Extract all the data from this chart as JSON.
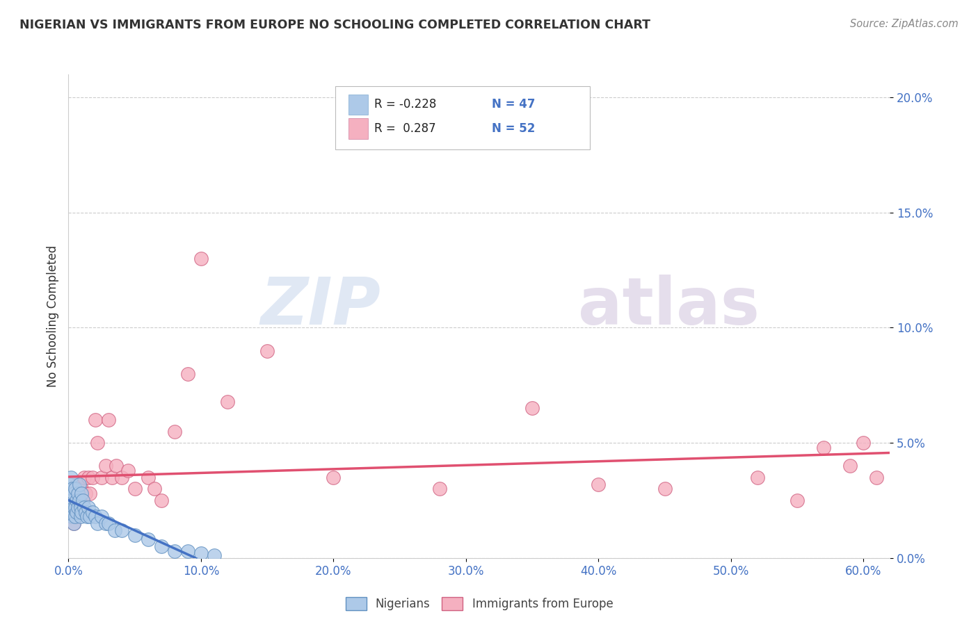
{
  "title": "NIGERIAN VS IMMIGRANTS FROM EUROPE NO SCHOOLING COMPLETED CORRELATION CHART",
  "source": "Source: ZipAtlas.com",
  "ylabel": "No Schooling Completed",
  "xlim": [
    0.0,
    0.62
  ],
  "ylim": [
    0.0,
    0.21
  ],
  "xlabel_vals": [
    0.0,
    0.1,
    0.2,
    0.3,
    0.4,
    0.5,
    0.6
  ],
  "ylabel_vals": [
    0.0,
    0.05,
    0.1,
    0.15,
    0.2
  ],
  "nigerian_R": -0.228,
  "nigerian_N": 47,
  "europe_R": 0.287,
  "europe_N": 52,
  "nigerian_color": "#adc9e8",
  "europe_color": "#f5b0c0",
  "nigerian_line_color": "#4472c4",
  "europe_line_color": "#e05070",
  "nigerian_x": [
    0.0,
    0.001,
    0.001,
    0.001,
    0.002,
    0.002,
    0.002,
    0.003,
    0.003,
    0.003,
    0.004,
    0.004,
    0.004,
    0.005,
    0.005,
    0.005,
    0.006,
    0.006,
    0.007,
    0.007,
    0.008,
    0.008,
    0.009,
    0.009,
    0.01,
    0.01,
    0.011,
    0.012,
    0.013,
    0.014,
    0.015,
    0.016,
    0.018,
    0.02,
    0.022,
    0.025,
    0.028,
    0.03,
    0.035,
    0.04,
    0.05,
    0.06,
    0.07,
    0.08,
    0.09,
    0.1,
    0.11
  ],
  "nigerian_y": [
    0.03,
    0.032,
    0.028,
    0.022,
    0.035,
    0.025,
    0.02,
    0.03,
    0.025,
    0.018,
    0.028,
    0.022,
    0.015,
    0.03,
    0.022,
    0.018,
    0.025,
    0.02,
    0.028,
    0.022,
    0.032,
    0.025,
    0.022,
    0.018,
    0.028,
    0.02,
    0.025,
    0.022,
    0.02,
    0.018,
    0.022,
    0.018,
    0.02,
    0.018,
    0.015,
    0.018,
    0.015,
    0.015,
    0.012,
    0.012,
    0.01,
    0.008,
    0.005,
    0.003,
    0.003,
    0.002,
    0.001
  ],
  "europe_x": [
    0.0,
    0.001,
    0.001,
    0.002,
    0.002,
    0.003,
    0.003,
    0.004,
    0.004,
    0.005,
    0.005,
    0.006,
    0.006,
    0.007,
    0.008,
    0.009,
    0.01,
    0.011,
    0.012,
    0.013,
    0.015,
    0.016,
    0.018,
    0.02,
    0.022,
    0.025,
    0.028,
    0.03,
    0.033,
    0.036,
    0.04,
    0.045,
    0.05,
    0.06,
    0.065,
    0.07,
    0.08,
    0.09,
    0.1,
    0.12,
    0.15,
    0.2,
    0.28,
    0.35,
    0.4,
    0.45,
    0.52,
    0.55,
    0.57,
    0.59,
    0.6,
    0.61
  ],
  "europe_y": [
    0.02,
    0.025,
    0.018,
    0.028,
    0.02,
    0.025,
    0.018,
    0.022,
    0.015,
    0.028,
    0.02,
    0.032,
    0.025,
    0.02,
    0.025,
    0.022,
    0.03,
    0.025,
    0.035,
    0.028,
    0.035,
    0.028,
    0.035,
    0.06,
    0.05,
    0.035,
    0.04,
    0.06,
    0.035,
    0.04,
    0.035,
    0.038,
    0.03,
    0.035,
    0.03,
    0.025,
    0.055,
    0.08,
    0.13,
    0.068,
    0.09,
    0.035,
    0.03,
    0.065,
    0.032,
    0.03,
    0.035,
    0.025,
    0.048,
    0.04,
    0.05,
    0.035
  ],
  "watermark_zip": "ZIP",
  "watermark_atlas": "atlas"
}
